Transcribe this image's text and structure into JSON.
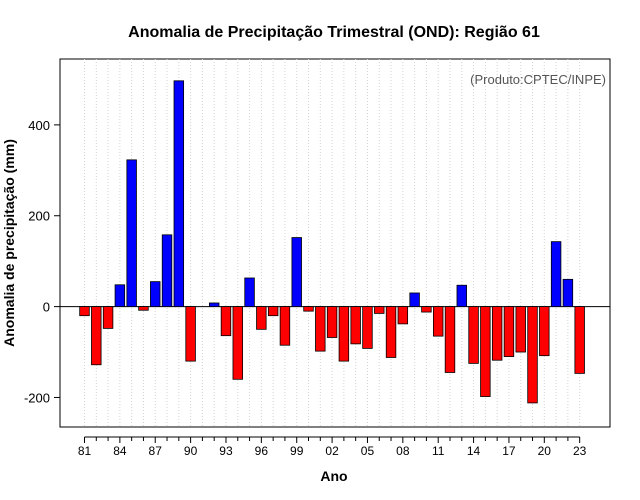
{
  "chart_data": {
    "type": "bar",
    "title": "Anomalia de Precipitação Trimestral (OND): Região 61",
    "xlabel": "Ano",
    "ylabel": "Anomalia de precipitação (mm)",
    "source_note": "(Produto:CPTEC/INPE)",
    "ylim": [
      -265,
      545
    ],
    "yticks": [
      -200,
      0,
      200,
      400
    ],
    "x_tick_labels": [
      "81",
      "84",
      "87",
      "90",
      "93",
      "96",
      "99",
      "02",
      "05",
      "08",
      "11",
      "14",
      "17",
      "20",
      "23"
    ],
    "categories": [
      "1981",
      "1982",
      "1983",
      "1984",
      "1985",
      "1986",
      "1987",
      "1988",
      "1989",
      "1990",
      "1991",
      "1992",
      "1993",
      "1994",
      "1995",
      "1996",
      "1997",
      "1998",
      "1999",
      "2000",
      "2001",
      "2002",
      "2003",
      "2004",
      "2005",
      "2006",
      "2007",
      "2008",
      "2009",
      "2010",
      "2011",
      "2012",
      "2013",
      "2014",
      "2015",
      "2016",
      "2017",
      "2018",
      "2019",
      "2020",
      "2021",
      "2022",
      "2023"
    ],
    "values": [
      -20,
      -128,
      -48,
      48,
      323,
      -8,
      55,
      158,
      497,
      -120,
      0,
      8,
      -64,
      -160,
      63,
      -50,
      -20,
      -85,
      152,
      -10,
      -98,
      -68,
      -120,
      -82,
      -92,
      -15,
      -112,
      -38,
      30,
      -12,
      -65,
      -145,
      47,
      -125,
      -198,
      -118,
      -110,
      -100,
      -212,
      -108,
      143,
      60,
      -147
    ],
    "colors": {
      "positive": "#0000ff",
      "negative": "#ff0000"
    },
    "grid": "vertical dotted",
    "zero_line": true
  }
}
